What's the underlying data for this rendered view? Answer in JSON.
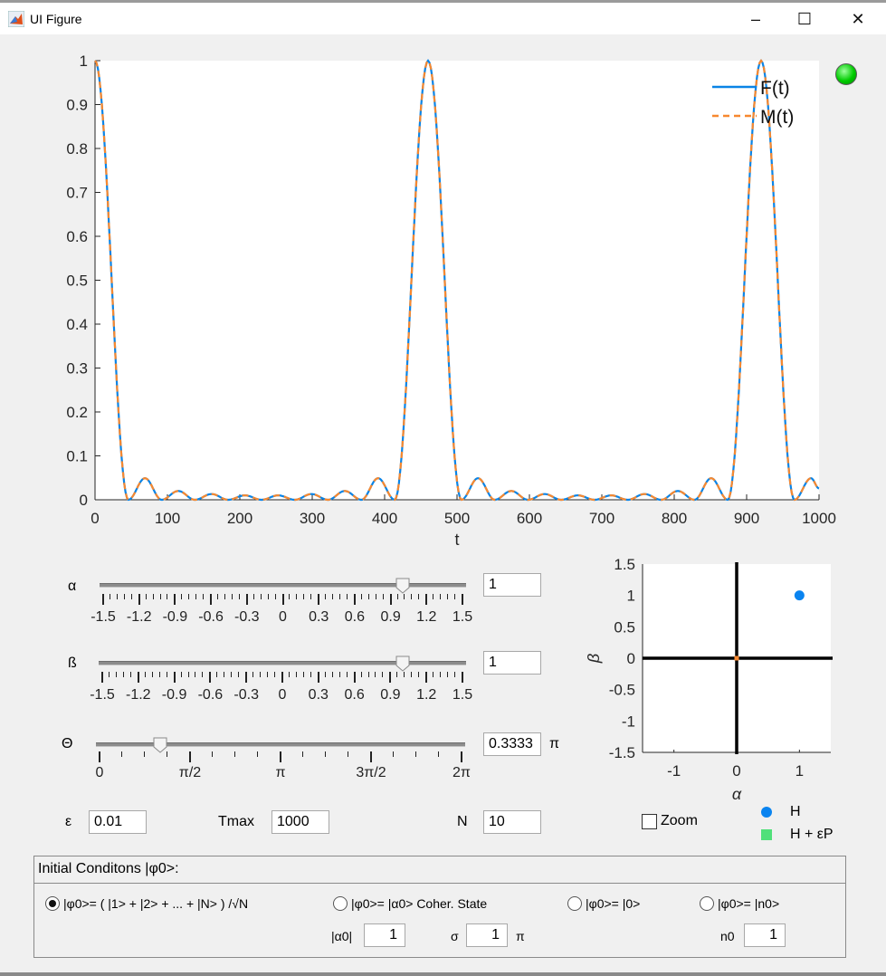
{
  "window": {
    "title": "UI Figure",
    "controls": {
      "minimize": "–",
      "maximize": "☐",
      "close": "✕"
    }
  },
  "status_lamp": {
    "color": "#00cc00",
    "state": "on"
  },
  "chart_data": [
    {
      "type": "line",
      "xlabel": "t",
      "ylabel": "",
      "xlim": [
        0,
        1000
      ],
      "ylim": [
        0,
        1
      ],
      "xticks": [
        "0",
        "100",
        "200",
        "300",
        "400",
        "500",
        "600",
        "700",
        "800",
        "900",
        "1000"
      ],
      "yticks": [
        "0",
        "0.1",
        "0.2",
        "0.3",
        "0.4",
        "0.5",
        "0.6",
        "0.7",
        "0.8",
        "0.9",
        "1"
      ],
      "grid": false,
      "legend_position": "top-right",
      "x": [
        0,
        46,
        69,
        92,
        115,
        138,
        161,
        184,
        207,
        230,
        253,
        276,
        299,
        322,
        345,
        368,
        391,
        414,
        460,
        506,
        529,
        552,
        575,
        598,
        621,
        644,
        667,
        690,
        713,
        736,
        759,
        782,
        805,
        828,
        851,
        874,
        920,
        966,
        989,
        1000
      ],
      "series": [
        {
          "name": "F(t)",
          "color": "#0a84e6",
          "style": "solid",
          "values": [
            1,
            0,
            0.049,
            0,
            0.02,
            0,
            0.013,
            0,
            0.01,
            0,
            0.01,
            0,
            0.013,
            0,
            0.02,
            0,
            0.049,
            0,
            1,
            0,
            0.049,
            0,
            0.02,
            0,
            0.013,
            0,
            0.01,
            0,
            0.01,
            0,
            0.013,
            0,
            0.02,
            0,
            0.049,
            0,
            1,
            0,
            0.049,
            0.026
          ]
        },
        {
          "name": "M(t)",
          "color": "#f7882f",
          "style": "dashed",
          "values": [
            1,
            0,
            0.049,
            0,
            0.02,
            0,
            0.013,
            0,
            0.01,
            0,
            0.01,
            0,
            0.013,
            0,
            0.02,
            0,
            0.049,
            0,
            1,
            0,
            0.049,
            0,
            0.02,
            0,
            0.013,
            0,
            0.01,
            0,
            0.01,
            0,
            0.013,
            0,
            0.02,
            0,
            0.049,
            0,
            1,
            0,
            0.049,
            0.026
          ]
        }
      ]
    },
    {
      "type": "scatter",
      "xlabel": "α",
      "ylabel": "β",
      "xlim": [
        -1.5,
        1.5
      ],
      "ylim": [
        -1.5,
        1.5
      ],
      "xticks": [
        "-1",
        "0",
        "1"
      ],
      "yticks": [
        "-1.5",
        "-1",
        "-0.5",
        "0",
        "0.5",
        "1",
        "1.5"
      ],
      "grid": false,
      "series": [
        {
          "name": "H",
          "color": "#0a84f0",
          "marker": "circle",
          "points": [
            [
              1,
              1
            ]
          ]
        },
        {
          "name": "H + εP",
          "color": "#50e07a",
          "marker": "square",
          "points": []
        },
        {
          "color": "#f7882f",
          "marker": "square",
          "points": [
            [
              0,
              0
            ]
          ]
        }
      ]
    }
  ],
  "controls": {
    "alpha": {
      "label": "α",
      "value": 1,
      "value_text": "1",
      "min": -1.5,
      "max": 1.5,
      "ticks": [
        "-1.5",
        "-1.2",
        "-0.9",
        "-0.6",
        "-0.3",
        "0",
        "0.3",
        "0.6",
        "0.9",
        "1.2",
        "1.5"
      ]
    },
    "beta": {
      "label": "ß",
      "value": 1,
      "value_text": "1",
      "min": -1.5,
      "max": 1.5,
      "ticks": [
        "-1.5",
        "-1.2",
        "-0.9",
        "-0.6",
        "-0.3",
        "0",
        "0.3",
        "0.6",
        "0.9",
        "1.2",
        "1.5"
      ]
    },
    "theta": {
      "label": "Θ",
      "value": 0.3333,
      "value_text": "0.3333",
      "unit": "π",
      "min": 0,
      "max": 2,
      "ticks": [
        "0",
        "π/2",
        "π",
        "3π/2",
        "2π"
      ]
    },
    "epsilon": {
      "label": "ε",
      "value": "0.01"
    },
    "tmax": {
      "label": "Tmax",
      "value": "1000"
    },
    "n": {
      "label": "N",
      "value": "10"
    },
    "zoom": {
      "label": "Zoom",
      "checked": false
    }
  },
  "initial_conditions": {
    "title": "Initial Conditons |φ0>:",
    "options": [
      {
        "label": "|φ0>= ( |1> + |2> + ... + |N> ) /√N",
        "selected": true
      },
      {
        "label": "|φ0>= |α0>  Coher. State",
        "selected": false
      },
      {
        "label": "|φ0>= |0>",
        "selected": false
      },
      {
        "label": "|φ0>= |n0>",
        "selected": false
      }
    ],
    "alpha0": {
      "label": "|α0|",
      "value": "1"
    },
    "sigma": {
      "label": "σ",
      "value": "1",
      "unit": "π"
    },
    "n0": {
      "label": "n0",
      "value": "1"
    }
  }
}
